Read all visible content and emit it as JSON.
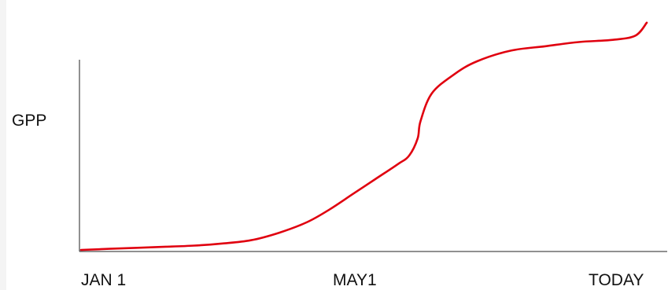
{
  "chart_data": {
    "type": "line",
    "title": "",
    "xlabel": "",
    "ylabel": "GPP",
    "x_tick_labels": [
      "JAN 1",
      "MAY1",
      "TODAY"
    ],
    "series": [
      {
        "color": "#e0000f",
        "x": [
          0,
          0.05,
          0.1,
          0.15,
          0.2,
          0.25,
          0.3,
          0.35,
          0.4,
          0.44,
          0.48,
          0.52,
          0.56,
          0.58,
          0.595,
          0.6,
          0.62,
          0.66,
          0.7,
          0.76,
          0.82,
          0.88,
          0.94,
          0.98,
          1.0
        ],
        "y": [
          0,
          0.005,
          0.01,
          0.015,
          0.02,
          0.03,
          0.045,
          0.08,
          0.13,
          0.19,
          0.26,
          0.33,
          0.4,
          0.44,
          0.52,
          0.6,
          0.73,
          0.82,
          0.88,
          0.93,
          0.95,
          0.97,
          0.98,
          1.0,
          1.06
        ]
      }
    ],
    "ylim": [
      0,
      1.1
    ],
    "xlim": [
      0,
      1
    ],
    "grid": false,
    "legend": "none"
  }
}
